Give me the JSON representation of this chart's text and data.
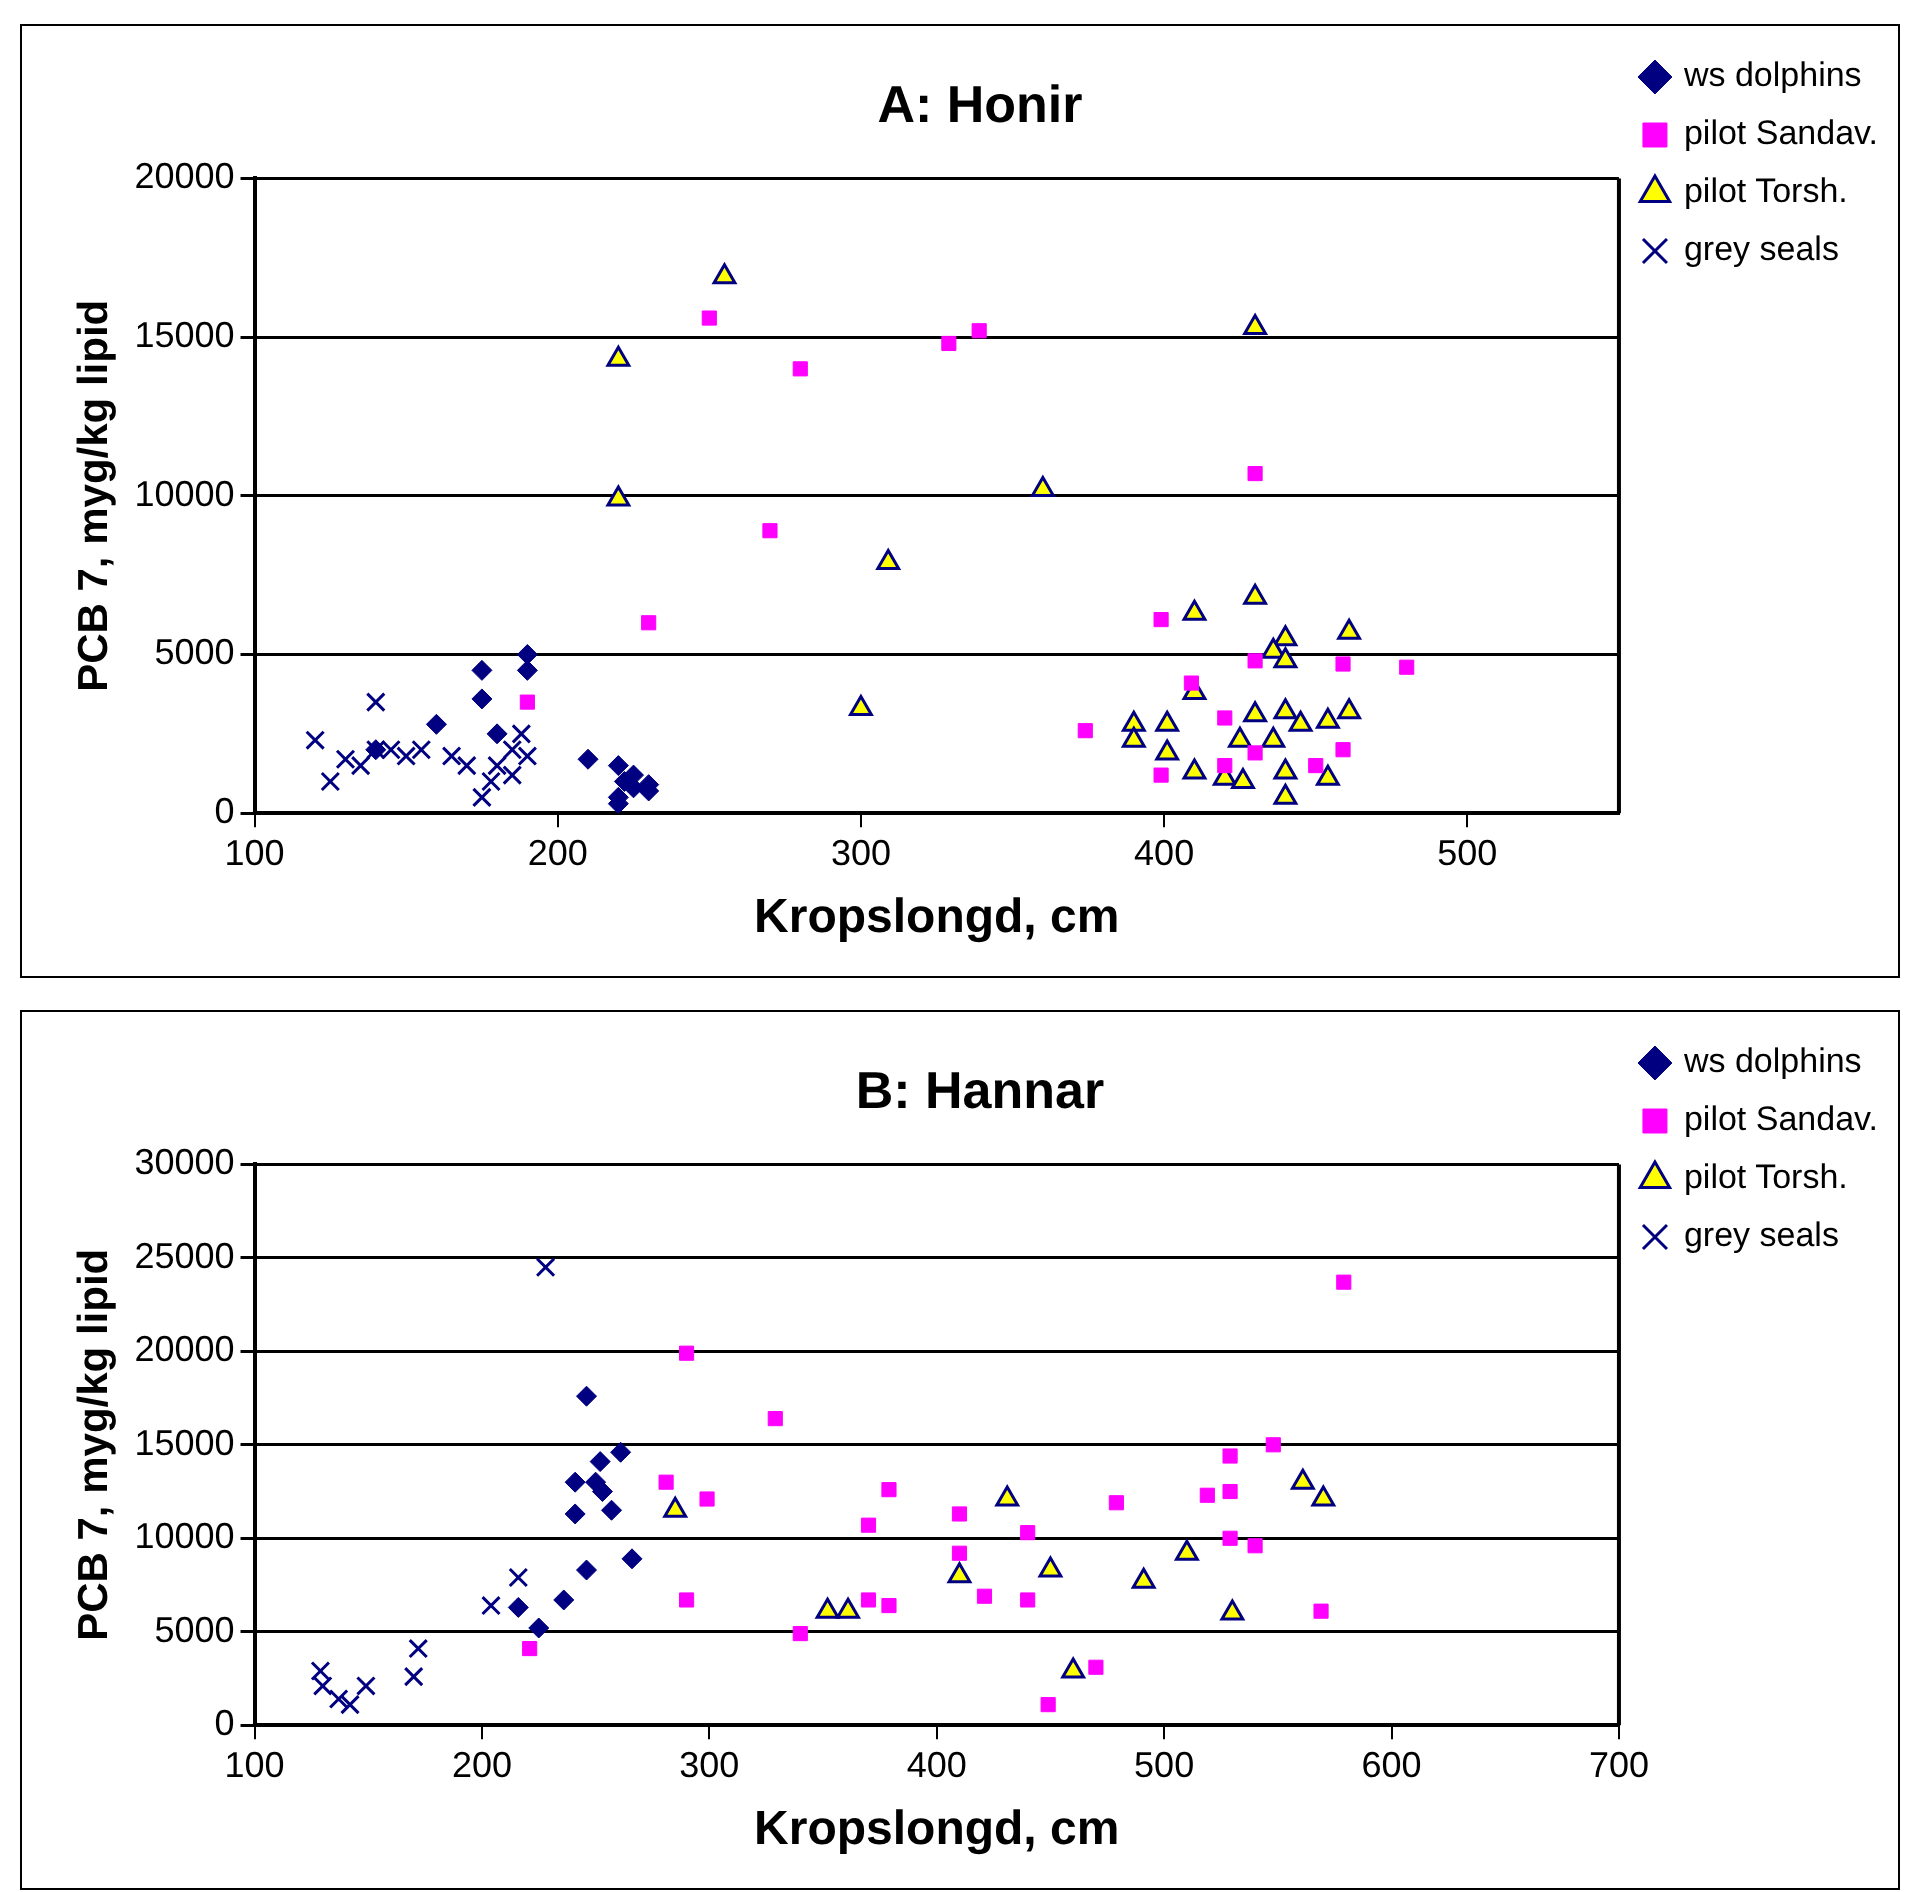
{
  "chart_data": [
    {
      "type": "scatter",
      "title": "A: Honir",
      "xlabel": "Kropslongd, cm",
      "ylabel": "PCB 7, myg/kg lipid",
      "xlim": [
        100,
        550
      ],
      "xticks": [
        100,
        200,
        300,
        400,
        500
      ],
      "ylim": [
        0,
        20000
      ],
      "yticks": [
        0,
        5000,
        10000,
        15000,
        20000
      ],
      "grid": "y",
      "legend": "top right",
      "series": [
        {
          "name": "ws dolphins",
          "color": "#000080",
          "marker": "diamond",
          "x": [
            140,
            160,
            175,
            175,
            180,
            190,
            190,
            210,
            220,
            220,
            222,
            225,
            230,
            230,
            225,
            220
          ],
          "values": [
            2000,
            2800,
            4500,
            3600,
            2500,
            5000,
            4500,
            1700,
            1500,
            500,
            1000,
            800,
            700,
            900,
            1200,
            300
          ]
        },
        {
          "name": "pilot Sandav.",
          "color": "#ff00ff",
          "marker": "square",
          "x": [
            190,
            230,
            250,
            270,
            280,
            329,
            339,
            430,
            399,
            409,
            430,
            459,
            480,
            374,
            420,
            399,
            459,
            450,
            430,
            420
          ],
          "values": [
            3500,
            6000,
            15600,
            8900,
            14000,
            14800,
            15200,
            10700,
            6100,
            4100,
            4800,
            4700,
            4600,
            2600,
            3000,
            1200,
            2000,
            1500,
            1900,
            1500
          ]
        },
        {
          "name": "pilot Torsh.",
          "color": "#ffff00",
          "marker": "triangle",
          "x": [
            220,
            220,
            255,
            300,
            309,
            360,
            430,
            430,
            410,
            461,
            440,
            436,
            440,
            390,
            401,
            390,
            410,
            401,
            420,
            430,
            440,
            454,
            461,
            425,
            430,
            436,
            410,
            420,
            426,
            440,
            454,
            440,
            445
          ],
          "values": [
            14300,
            9900,
            16900,
            3300,
            7900,
            10200,
            15300,
            6800,
            6300,
            5700,
            5500,
            5100,
            4800,
            2800,
            2800,
            2300,
            3800,
            1900,
            null,
            3100,
            3200,
            2900,
            3200,
            2300,
            null,
            2300,
            1300,
            1100,
            1000,
            1300,
            1100,
            500,
            2800
          ]
        },
        {
          "name": "grey seals",
          "color": "#000080",
          "marker": "cross",
          "x": [
            120,
            125,
            130,
            135,
            140,
            140,
            145,
            150,
            155,
            165,
            170,
            175,
            178,
            180,
            185,
            188,
            190,
            185
          ],
          "values": [
            2300,
            1000,
            1700,
            1500,
            3500,
            2000,
            2000,
            1800,
            2000,
            1800,
            1500,
            500,
            1000,
            1500,
            1200,
            2500,
            1800,
            2000
          ]
        }
      ]
    },
    {
      "type": "scatter",
      "title": "B: Hannar",
      "xlabel": "Kropslongd, cm",
      "ylabel": "PCB 7, myg/kg lipid",
      "xlim": [
        100,
        700
      ],
      "xticks": [
        100,
        200,
        300,
        400,
        500,
        600,
        700
      ],
      "ylim": [
        0,
        30000
      ],
      "yticks": [
        0,
        5000,
        10000,
        15000,
        20000,
        25000,
        30000
      ],
      "grid": "y",
      "legend": "top right",
      "series": [
        {
          "name": "ws dolphins",
          "color": "#000080",
          "marker": "diamond",
          "x": [
            216,
            225,
            236,
            246,
            246,
            241,
            241,
            252,
            250,
            257,
            261,
            266,
            253
          ],
          "values": [
            6300,
            5200,
            6700,
            8300,
            17600,
            13000,
            11300,
            14100,
            13000,
            11500,
            14600,
            8900,
            12500
          ]
        },
        {
          "name": "pilot Sandav.",
          "color": "#ff00ff",
          "marker": "square",
          "x": [
            221,
            281,
            290,
            299,
            290,
            329,
            340,
            370,
            379,
            370,
            379,
            410,
            410,
            421,
            440,
            440,
            479,
            470,
            449,
            529,
            519,
            529,
            529,
            540,
            548,
            569,
            579
          ],
          "values": [
            4100,
            13000,
            19900,
            12100,
            6700,
            16400,
            4900,
            10700,
            12600,
            6700,
            6400,
            11300,
            9200,
            6900,
            10300,
            6700,
            11900,
            3100,
            1100,
            14400,
            12300,
            12500,
            10000,
            9600,
            15000,
            6100,
            23700
          ]
        },
        {
          "name": "pilot Torsh.",
          "color": "#ffff00",
          "marker": "triangle",
          "x": [
            285,
            352,
            361,
            410,
            421,
            431,
            450,
            460,
            491,
            510,
            530,
            561,
            570
          ],
          "values": [
            11500,
            6100,
            6100,
            8000,
            null,
            12100,
            8300,
            2900,
            7700,
            9200,
            6000,
            13000,
            12100
          ]
        },
        {
          "name": "grey seals",
          "color": "#000080",
          "marker": "cross",
          "x": [
            129,
            130,
            137,
            142,
            149,
            172,
            170,
            204,
            216,
            228
          ],
          "values": [
            2900,
            2100,
            1400,
            1100,
            2100,
            4100,
            2600,
            6400,
            7900,
            24500
          ]
        }
      ]
    }
  ]
}
